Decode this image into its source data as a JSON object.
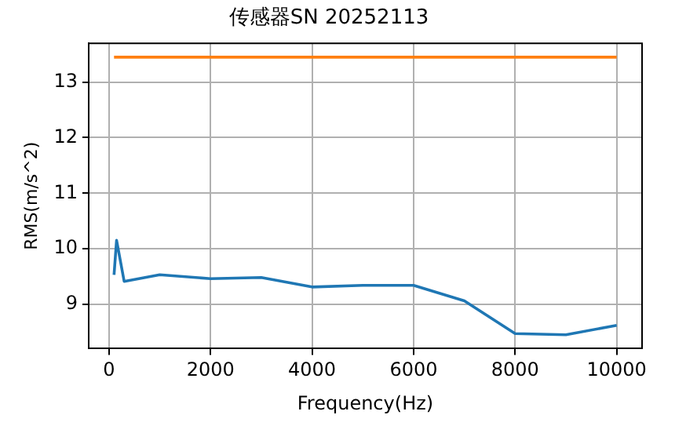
{
  "chart_data": {
    "type": "line",
    "title": "传感器SN 20252113",
    "xlabel": "Frequency(Hz)",
    "ylabel": "RMS(m/s^2)",
    "xlim": [
      -400,
      10500
    ],
    "xticks": [
      0,
      2000,
      4000,
      6000,
      8000,
      10000
    ],
    "ylim": [
      8.2,
      13.7
    ],
    "yticks": [
      9,
      10,
      11,
      12,
      13
    ],
    "grid": true,
    "legend": false,
    "series": [
      {
        "color": "#1f77b4",
        "x": [
          100,
          150,
          300,
          1000,
          2000,
          3000,
          4000,
          5000,
          6000,
          7000,
          8000,
          9000,
          10000
        ],
        "values": [
          9.53,
          10.15,
          9.41,
          9.53,
          9.46,
          9.48,
          9.31,
          9.34,
          9.34,
          9.06,
          8.47,
          8.45,
          8.62
        ]
      },
      {
        "color": "#ff7f0e",
        "x": [
          100,
          10000
        ],
        "values": [
          13.45,
          13.45
        ]
      }
    ]
  }
}
